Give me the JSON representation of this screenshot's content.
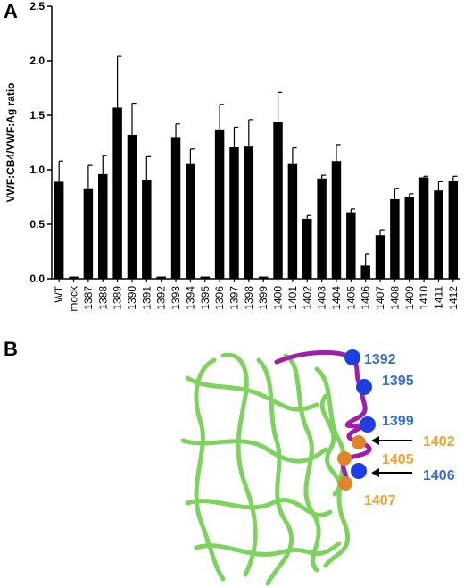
{
  "panel_a": {
    "letter": "A"
  },
  "panel_b": {
    "letter": "B",
    "labels": [
      {
        "text": "1392",
        "color": "#3a6fc4"
      },
      {
        "text": "1395",
        "color": "#3a6fc4"
      },
      {
        "text": "1399",
        "color": "#3a6fc4"
      },
      {
        "text": "1402",
        "color": "#e8a531"
      },
      {
        "text": "1405",
        "color": "#e8a531"
      },
      {
        "text": "1406",
        "color": "#3a6fc4"
      },
      {
        "text": "1407",
        "color": "#e8a531"
      }
    ],
    "colors": {
      "backbone": "#7fd160",
      "loop": "#a11fa8",
      "sphere_blue": "#1f3ee0",
      "sphere_orange": "#e0852a"
    }
  },
  "chart_data": {
    "type": "bar",
    "title": "",
    "xlabel": "",
    "ylabel": "VWF:CB4/VWF:Ag ratio",
    "ylim": [
      0,
      2.5
    ],
    "yticks": [
      "0.0",
      "0.5",
      "1.0",
      "1.5",
      "2.0",
      "2.5"
    ],
    "categories": [
      "WT",
      "mock",
      "1387",
      "1388",
      "1389",
      "1390",
      "1391",
      "1392",
      "1393",
      "1394",
      "1395",
      "1396",
      "1397",
      "1398",
      "1399",
      "1400",
      "1401",
      "1402",
      "1403",
      "1404",
      "1405",
      "1406",
      "1407",
      "1408",
      "1409",
      "1410",
      "1411",
      "1412"
    ],
    "values": [
      0.89,
      0.02,
      0.83,
      0.96,
      1.57,
      1.32,
      0.91,
      0.02,
      1.3,
      1.06,
      0.02,
      1.37,
      1.21,
      1.22,
      0.02,
      1.44,
      1.06,
      0.55,
      0.92,
      1.08,
      0.61,
      0.12,
      0.4,
      0.73,
      0.75,
      0.93,
      0.81,
      0.9
    ],
    "errors": [
      0.19,
      0.0,
      0.21,
      0.17,
      0.47,
      0.29,
      0.21,
      0.0,
      0.12,
      0.13,
      0.0,
      0.23,
      0.18,
      0.24,
      0.0,
      0.27,
      0.14,
      0.03,
      0.03,
      0.15,
      0.03,
      0.11,
      0.05,
      0.1,
      0.03,
      0.01,
      0.08,
      0.04
    ],
    "bar_color": "#000000"
  }
}
